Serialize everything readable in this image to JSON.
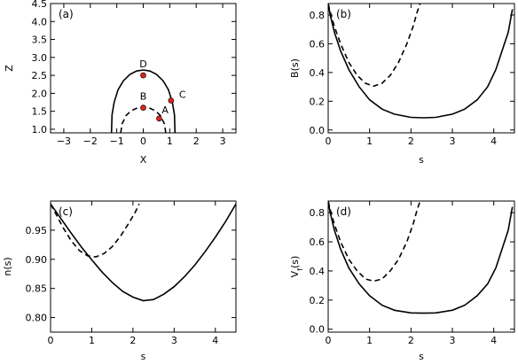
{
  "chart_data": [
    {
      "panel": "(a)",
      "type": "line",
      "xlabel": "X",
      "ylabel": "Z",
      "xlim": [
        -3.5,
        3.5
      ],
      "ylim": [
        0.9,
        4.5
      ],
      "xticks": [
        -3,
        -2,
        -1,
        0,
        1,
        2,
        3
      ],
      "yticks": [
        1.0,
        1.5,
        2.0,
        2.5,
        3.0,
        3.5,
        4.0,
        4.5
      ],
      "ytick_labels": [
        "1.0",
        "1.5",
        "2.0",
        "2.5",
        "3.0",
        "3.5",
        "4.0",
        "4.5"
      ],
      "series": [
        {
          "style": "solid",
          "x": [
            -1.2,
            -1.18,
            -1.1,
            -0.95,
            -0.75,
            -0.5,
            -0.25,
            0.0,
            0.25,
            0.5,
            0.75,
            0.95,
            1.1,
            1.18,
            1.2
          ],
          "y": [
            0.9,
            1.4,
            1.75,
            2.1,
            2.35,
            2.53,
            2.62,
            2.65,
            2.62,
            2.53,
            2.35,
            2.1,
            1.75,
            1.4,
            0.9
          ]
        },
        {
          "style": "dashed",
          "x": [
            -0.85,
            -0.8,
            -0.65,
            -0.45,
            -0.2,
            0.0,
            0.2,
            0.45,
            0.65,
            0.8,
            0.85
          ],
          "y": [
            0.9,
            1.15,
            1.38,
            1.52,
            1.6,
            1.62,
            1.6,
            1.52,
            1.38,
            1.15,
            0.9
          ]
        }
      ],
      "points": [
        {
          "label": "D",
          "x": 0.0,
          "y": 2.5
        },
        {
          "label": "B",
          "x": 0.0,
          "y": 1.6
        },
        {
          "label": "C",
          "x": 1.05,
          "y": 1.8
        },
        {
          "label": "A",
          "x": 0.6,
          "y": 1.3
        }
      ]
    },
    {
      "panel": "(b)",
      "type": "line",
      "xlabel": "s",
      "ylabel": "B(s)",
      "xlim": [
        0,
        4.5
      ],
      "ylim": [
        -0.02,
        0.88
      ],
      "xticks": [
        0,
        1,
        2,
        3,
        4
      ],
      "yticks": [
        0.0,
        0.2,
        0.4,
        0.6,
        0.8
      ],
      "ytick_labels": [
        "0.0",
        "0.2",
        "0.4",
        "0.6",
        "0.8"
      ],
      "series": [
        {
          "style": "solid",
          "x": [
            0.0,
            0.05,
            0.15,
            0.3,
            0.5,
            0.75,
            1.0,
            1.3,
            1.6,
            2.0,
            2.3,
            2.6,
            3.0,
            3.3,
            3.6,
            3.85,
            4.05,
            4.2,
            4.35,
            4.45
          ],
          "y": [
            0.88,
            0.8,
            0.68,
            0.55,
            0.42,
            0.3,
            0.21,
            0.145,
            0.11,
            0.088,
            0.085,
            0.088,
            0.11,
            0.145,
            0.21,
            0.3,
            0.42,
            0.55,
            0.68,
            0.84
          ]
        },
        {
          "style": "dashed",
          "x": [
            0.0,
            0.05,
            0.15,
            0.3,
            0.5,
            0.7,
            0.9,
            1.1,
            1.3,
            1.5,
            1.7,
            1.9,
            2.05,
            2.15,
            2.22
          ],
          "y": [
            0.88,
            0.82,
            0.72,
            0.6,
            0.47,
            0.38,
            0.325,
            0.305,
            0.325,
            0.38,
            0.47,
            0.6,
            0.72,
            0.82,
            0.88
          ]
        }
      ]
    },
    {
      "panel": "(c)",
      "type": "line",
      "xlabel": "s",
      "ylabel": "n(s)",
      "xlim": [
        0,
        4.5
      ],
      "ylim": [
        0.775,
        1.0
      ],
      "xticks": [
        0,
        1,
        2,
        3,
        4
      ],
      "yticks": [
        0.8,
        0.85,
        0.9,
        0.95
      ],
      "ytick_labels": [
        "0.80",
        "0.85",
        "0.90",
        "0.95"
      ],
      "series": [
        {
          "style": "solid",
          "x": [
            0.0,
            0.25,
            0.5,
            0.75,
            1.0,
            1.25,
            1.5,
            1.75,
            2.0,
            2.25,
            2.5,
            2.75,
            3.0,
            3.25,
            3.5,
            3.75,
            4.0,
            4.25,
            4.5
          ],
          "y": [
            0.995,
            0.97,
            0.945,
            0.921,
            0.899,
            0.878,
            0.86,
            0.845,
            0.835,
            0.829,
            0.831,
            0.84,
            0.853,
            0.87,
            0.89,
            0.913,
            0.938,
            0.965,
            0.995
          ]
        },
        {
          "style": "dashed",
          "x": [
            0.0,
            0.15,
            0.3,
            0.5,
            0.7,
            0.9,
            1.1,
            1.3,
            1.5,
            1.7,
            1.9,
            2.05,
            2.15
          ],
          "y": [
            0.995,
            0.975,
            0.955,
            0.932,
            0.915,
            0.906,
            0.904,
            0.91,
            0.922,
            0.94,
            0.962,
            0.98,
            0.995
          ]
        }
      ]
    },
    {
      "panel": "(d)",
      "type": "line",
      "xlabel": "s",
      "ylabel_main": "V",
      "ylabel_sub": "f",
      "ylabel_tail": "(s)",
      "xlim": [
        0,
        4.5
      ],
      "ylim": [
        -0.02,
        0.88
      ],
      "xticks": [
        0,
        1,
        2,
        3,
        4
      ],
      "yticks": [
        0.0,
        0.2,
        0.4,
        0.6,
        0.8
      ],
      "ytick_labels": [
        "0.0",
        "0.2",
        "0.4",
        "0.6",
        "0.8"
      ],
      "series": [
        {
          "style": "solid",
          "x": [
            0.0,
            0.05,
            0.15,
            0.3,
            0.5,
            0.75,
            1.0,
            1.3,
            1.6,
            2.0,
            2.3,
            2.6,
            3.0,
            3.3,
            3.6,
            3.85,
            4.05,
            4.2,
            4.35,
            4.45
          ],
          "y": [
            0.88,
            0.8,
            0.68,
            0.55,
            0.42,
            0.31,
            0.23,
            0.165,
            0.13,
            0.112,
            0.11,
            0.112,
            0.13,
            0.165,
            0.23,
            0.31,
            0.42,
            0.55,
            0.68,
            0.84
          ]
        },
        {
          "style": "dashed",
          "x": [
            0.0,
            0.05,
            0.15,
            0.3,
            0.5,
            0.7,
            0.9,
            1.1,
            1.3,
            1.5,
            1.7,
            1.9,
            2.05,
            2.15,
            2.22
          ],
          "y": [
            0.88,
            0.82,
            0.72,
            0.6,
            0.48,
            0.4,
            0.345,
            0.33,
            0.345,
            0.4,
            0.48,
            0.6,
            0.72,
            0.82,
            0.88
          ]
        }
      ]
    }
  ]
}
